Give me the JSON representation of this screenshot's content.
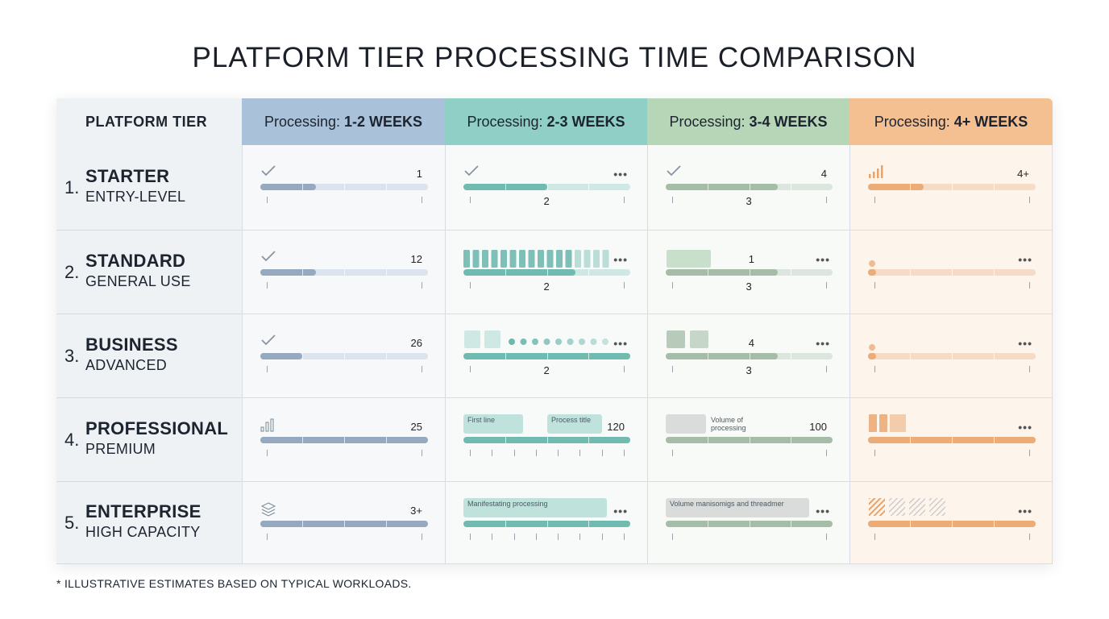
{
  "chart_data": {
    "type": "table",
    "title": "PLATFORM TIER PROCESSING TIME COMPARISON",
    "corner_header": "PLATFORM TIER",
    "column_prefix": "Processing:",
    "columns": [
      {
        "label": "1-2 WEEKS",
        "color": "#a9c2d9"
      },
      {
        "label": "2-3 WEEKS",
        "color": "#8fcfc6"
      },
      {
        "label": "3-4 WEEKS",
        "color": "#b7d6b8"
      },
      {
        "label": "4+ WEEKS",
        "color": "#f4bf91"
      }
    ],
    "rows": [
      {
        "number": "1.",
        "name": "STARTER",
        "subtitle": "ENTRY-LEVEL",
        "cells": [
          {
            "icon": "check-icon",
            "value": "1",
            "fill": 0.33
          },
          {
            "icon": "check-icon",
            "value": "",
            "menu": "•••",
            "bottom_value": "2",
            "fill": 0.5
          },
          {
            "icon": "check-icon",
            "value": "4",
            "bottom_value": "3",
            "fill": 0.67
          },
          {
            "icon": "bars-icon",
            "value": "4+",
            "fill": 0.33
          }
        ]
      },
      {
        "number": "2.",
        "name": "STANDARD",
        "subtitle": "GENERAL USE",
        "cells": [
          {
            "icon": "check-icon",
            "value": "12",
            "fill": 0.33
          },
          {
            "icon": "blocks-icon",
            "value": "",
            "menu": "•••",
            "bottom_value": "2",
            "fill": 0.67
          },
          {
            "icon": "block-icon",
            "value": "1",
            "menu": "•••",
            "bottom_value": "3",
            "fill": 0.67
          },
          {
            "icon": "dot-icon",
            "value": "",
            "menu": "•••",
            "fill": 0.05
          }
        ]
      },
      {
        "number": "3.",
        "name": "BUSINESS",
        "subtitle": "ADVANCED",
        "cells": [
          {
            "icon": "check-icon",
            "value": "26",
            "fill": 0.25
          },
          {
            "icon": "dots-icon",
            "value": "",
            "menu": "•••",
            "bottom_value": "2",
            "fill": 1.0
          },
          {
            "icon": "squares-icon",
            "value": "4",
            "menu": "•••",
            "bottom_value": "3",
            "fill": 0.67
          },
          {
            "icon": "dot-icon",
            "value": "",
            "menu": "•••",
            "fill": 0.05
          }
        ]
      },
      {
        "number": "4.",
        "name": "PROFESSIONAL",
        "subtitle": "PREMIUM",
        "cells": [
          {
            "icon": "barchart-icon",
            "value": "25",
            "fill": 1.0
          },
          {
            "icon": "labels-icon",
            "value": "120",
            "labels": [
              "First line",
              "Process title"
            ],
            "fill": 1.0
          },
          {
            "icon": "label-icon",
            "value": "100",
            "labels": [
              "Volume of processing"
            ],
            "fill": 1.0
          },
          {
            "icon": "columns-icon",
            "value": "",
            "menu": "•••",
            "fill": 1.0
          }
        ]
      },
      {
        "number": "5.",
        "name": "ENTERPRISE",
        "subtitle": "HIGH CAPACITY",
        "cells": [
          {
            "icon": "layers-icon",
            "value": "3+",
            "fill": 1.0
          },
          {
            "icon": "wide-label-icon",
            "value": "",
            "menu": "•••",
            "labels": [
              "Manifestating processing"
            ],
            "fill": 1.0
          },
          {
            "icon": "wide-label-icon",
            "value": "",
            "menu": "•••",
            "labels": [
              "Volume manisomigs and threadmer"
            ],
            "fill": 1.0
          },
          {
            "icon": "hatch-icon",
            "value": "",
            "menu": "•••",
            "fill": 1.0
          }
        ]
      }
    ],
    "footnote": "* ILLUSTRATIVE ESTIMATES BASED ON TYPICAL WORKLOADS."
  }
}
